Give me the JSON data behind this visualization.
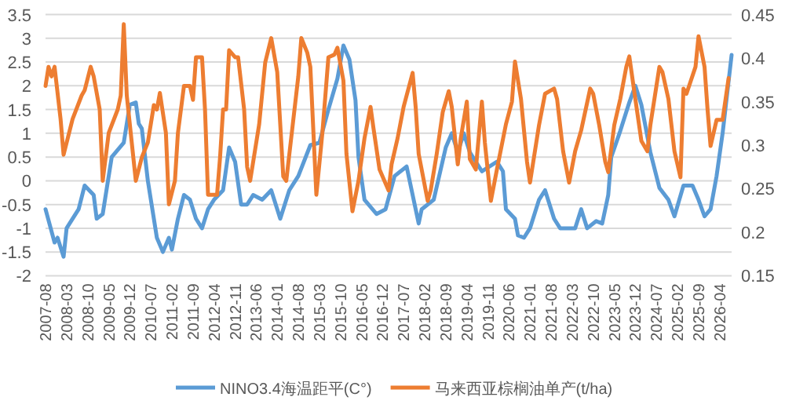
{
  "chart_data": {
    "type": "line",
    "xlim": [
      "2007-08",
      "2026-08"
    ],
    "xticks": [
      "2007-08",
      "2008-03",
      "2008-10",
      "2009-05",
      "2009-12",
      "2010-07",
      "2011-02",
      "2011-09",
      "2012-04",
      "2012-11",
      "2013-06",
      "2014-01",
      "2014-08",
      "2015-03",
      "2015-10",
      "2016-05",
      "2016-12",
      "2017-07",
      "2018-02",
      "2018-09",
      "2019-04",
      "2019-11",
      "2020-06",
      "2021-01",
      "2021-08",
      "2022-03",
      "2022-10",
      "2023-05",
      "2023-12",
      "2024-07",
      "2025-02",
      "2025-09",
      "2026-04"
    ],
    "ylim": [
      -2,
      3.5
    ],
    "yticks": [
      -2,
      -1.5,
      -1,
      -0.5,
      0,
      0.5,
      1,
      1.5,
      2,
      2.5,
      3,
      3.5
    ],
    "y2lim": [
      0.15,
      0.45
    ],
    "y2ticks": [
      0.15,
      0.2,
      0.25,
      0.3,
      0.35,
      0.4,
      0.45
    ],
    "grid": "y",
    "legend": "bottom",
    "marker": "none",
    "line_style": "solid",
    "series": [
      {
        "name": "NINO3.4海温距平(C°)",
        "color": "#5b9bd5",
        "x": [
          "2007-08",
          "2007-11",
          "2007-12",
          "2008-02",
          "2008-03",
          "2008-07",
          "2008-09",
          "2008-12",
          "2009-01",
          "2009-03",
          "2009-06",
          "2009-10",
          "2009-12",
          "2010-02",
          "2010-03",
          "2010-04",
          "2010-06",
          "2010-09",
          "2010-11",
          "2011-01",
          "2011-02",
          "2011-04",
          "2011-06",
          "2011-08",
          "2011-10",
          "2011-12",
          "2012-02",
          "2012-04",
          "2012-07",
          "2012-09",
          "2012-11",
          "2013-01",
          "2013-03",
          "2013-05",
          "2013-08",
          "2013-11",
          "2014-02",
          "2014-05",
          "2014-08",
          "2014-12",
          "2015-03",
          "2015-06",
          "2015-09",
          "2015-11",
          "2016-01",
          "2016-03",
          "2016-04",
          "2016-06",
          "2016-10",
          "2017-01",
          "2017-04",
          "2017-08",
          "2017-12",
          "2018-01",
          "2018-05",
          "2018-09",
          "2018-11",
          "2019-01",
          "2019-03",
          "2019-05",
          "2019-09",
          "2020-02",
          "2020-04",
          "2020-05",
          "2020-08",
          "2020-09",
          "2020-11",
          "2021-01",
          "2021-04",
          "2021-06",
          "2021-09",
          "2021-11",
          "2022-02",
          "2022-04",
          "2022-06",
          "2022-08",
          "2022-11",
          "2023-01",
          "2023-03",
          "2023-04",
          "2023-07",
          "2023-10",
          "2023-12",
          "2024-02",
          "2024-05",
          "2024-08",
          "2024-11",
          "2025-01",
          "2025-04",
          "2025-07",
          "2025-09",
          "2025-11",
          "2026-01",
          "2026-03",
          "2026-05",
          "2026-08"
        ],
        "values": [
          -0.6,
          -1.3,
          -1.2,
          -1.6,
          -1.0,
          -0.6,
          -0.1,
          -0.3,
          -0.8,
          -0.7,
          0.5,
          0.8,
          1.6,
          1.65,
          1.2,
          1.1,
          0,
          -1.2,
          -1.5,
          -1.2,
          -1.45,
          -0.8,
          -0.3,
          -0.4,
          -0.8,
          -1.0,
          -0.6,
          -0.4,
          -0.2,
          0.7,
          0.4,
          -0.5,
          -0.5,
          -0.3,
          -0.4,
          -0.2,
          -0.8,
          -0.2,
          0.1,
          0.75,
          0.8,
          1.5,
          2.15,
          2.85,
          2.55,
          1.7,
          0.5,
          -0.4,
          -0.7,
          -0.6,
          0.1,
          0.3,
          -0.9,
          -0.6,
          -0.4,
          0.7,
          1.0,
          0.6,
          1.0,
          0.6,
          0.2,
          0.4,
          0.2,
          -0.6,
          -0.8,
          -1.15,
          -1.2,
          -1.0,
          -0.4,
          -0.2,
          -0.8,
          -1.0,
          -1.0,
          -1.0,
          -0.6,
          -1.0,
          -0.85,
          -0.9,
          -0.3,
          0.5,
          1.05,
          1.65,
          2.0,
          1.6,
          0.6,
          -0.15,
          -0.4,
          -0.75,
          -0.1,
          -0.1,
          -0.4,
          -0.75,
          -0.6,
          0.1,
          1.0,
          2.65
        ]
      },
      {
        "name": "马来西亚棕榈油单产(t/ha)",
        "color": "#ed7d31",
        "axis": "y2",
        "x": [
          "2007-08",
          "2007-09",
          "2007-10",
          "2007-11",
          "2008-01",
          "2008-02",
          "2008-05",
          "2008-08",
          "2008-09",
          "2008-11",
          "2008-12",
          "2009-02",
          "2009-03",
          "2009-05",
          "2009-08",
          "2009-09",
          "2009-10",
          "2009-11",
          "2010-02",
          "2010-04",
          "2010-06",
          "2010-08",
          "2010-09",
          "2010-10",
          "2010-12",
          "2011-01",
          "2011-03",
          "2011-04",
          "2011-06",
          "2011-08",
          "2011-09",
          "2011-10",
          "2011-12",
          "2012-01",
          "2012-02",
          "2012-05",
          "2012-06",
          "2012-07",
          "2012-08",
          "2012-09",
          "2012-11",
          "2012-12",
          "2013-02",
          "2013-03",
          "2013-04",
          "2013-07",
          "2013-09",
          "2013-11",
          "2014-01",
          "2014-03",
          "2014-04",
          "2014-06",
          "2014-08",
          "2014-09",
          "2014-11",
          "2014-12",
          "2015-02",
          "2015-04",
          "2015-05",
          "2015-06",
          "2015-08",
          "2015-09",
          "2015-11",
          "2015-12",
          "2016-02",
          "2016-04",
          "2016-06",
          "2016-08",
          "2016-09",
          "2016-11",
          "2017-02",
          "2017-03",
          "2017-05",
          "2017-07",
          "2017-10",
          "2017-11",
          "2017-12",
          "2018-03",
          "2018-04",
          "2018-06",
          "2018-08",
          "2018-10",
          "2018-11",
          "2019-01",
          "2019-02",
          "2019-04",
          "2019-05",
          "2019-07",
          "2019-09",
          "2019-10",
          "2019-12",
          "2020-02",
          "2020-05",
          "2020-07",
          "2020-08",
          "2020-10",
          "2020-12",
          "2021-01",
          "2021-04",
          "2021-06",
          "2021-09",
          "2021-10",
          "2021-12",
          "2022-02",
          "2022-04",
          "2022-06",
          "2022-09",
          "2022-10",
          "2022-12",
          "2023-02",
          "2023-03",
          "2023-05",
          "2023-07",
          "2023-09",
          "2023-10",
          "2023-12",
          "2024-02",
          "2024-04",
          "2024-05",
          "2024-08",
          "2024-09",
          "2024-11",
          "2025-01",
          "2025-03",
          "2025-04",
          "2025-05",
          "2025-08",
          "2025-09",
          "2025-11",
          "2025-12",
          "2026-01",
          "2026-03",
          "2026-05",
          "2026-07"
        ],
        "values": [
          0.368,
          0.39,
          0.379,
          0.39,
          0.33,
          0.289,
          0.33,
          0.357,
          0.363,
          0.39,
          0.379,
          0.341,
          0.259,
          0.314,
          0.341,
          0.357,
          0.439,
          0.357,
          0.259,
          0.286,
          0.303,
          0.346,
          0.341,
          0.36,
          0.314,
          0.232,
          0.259,
          0.314,
          0.368,
          0.368,
          0.352,
          0.401,
          0.401,
          0.341,
          0.243,
          0.243,
          0.286,
          0.341,
          0.341,
          0.409,
          0.401,
          0.401,
          0.341,
          0.275,
          0.259,
          0.324,
          0.395,
          0.423,
          0.384,
          0.264,
          0.259,
          0.319,
          0.379,
          0.423,
          0.406,
          0.39,
          0.243,
          0.314,
          0.357,
          0.401,
          0.404,
          0.412,
          0.374,
          0.29,
          0.224,
          0.259,
          0.308,
          0.344,
          0.319,
          0.272,
          0.248,
          0.278,
          0.308,
          0.344,
          0.383,
          0.344,
          0.29,
          0.236,
          0.248,
          0.29,
          0.338,
          0.362,
          0.344,
          0.278,
          0.308,
          0.35,
          0.284,
          0.272,
          0.35,
          0.303,
          0.236,
          0.272,
          0.324,
          0.35,
          0.396,
          0.353,
          0.281,
          0.257,
          0.323,
          0.359,
          0.365,
          0.353,
          0.293,
          0.257,
          0.293,
          0.317,
          0.365,
          0.359,
          0.323,
          0.281,
          0.269,
          0.323,
          0.353,
          0.39,
          0.402,
          0.353,
          0.305,
          0.293,
          0.323,
          0.39,
          0.384,
          0.353,
          0.293,
          0.263,
          0.365,
          0.359,
          0.39,
          0.425,
          0.39,
          0.341,
          0.299,
          0.329,
          0.329,
          0.377
        ]
      }
    ]
  }
}
